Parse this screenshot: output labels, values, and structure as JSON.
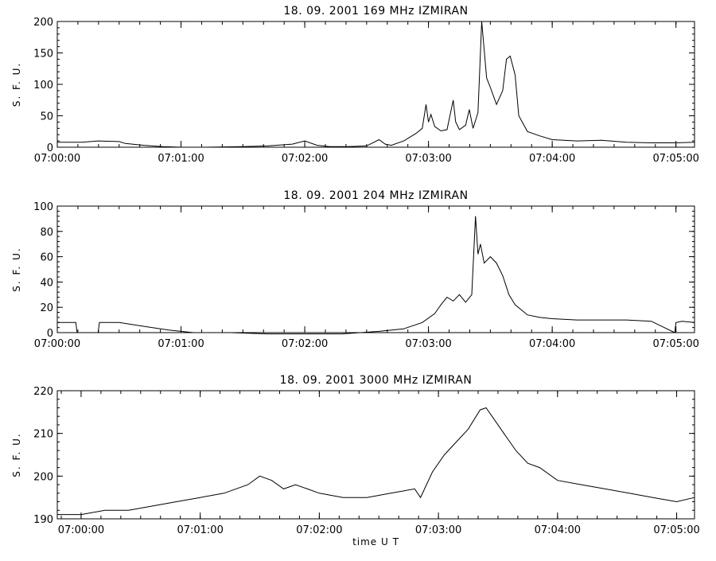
{
  "chart_data": [
    {
      "type": "line",
      "title": "18.  09.  2001    169  MHz    IZMIRAN",
      "ylabel": "S. F. U.",
      "xlabel": "",
      "ylim": [
        0,
        200
      ],
      "yticks": [
        0,
        50,
        100,
        150,
        200
      ],
      "xlim_min": [
        0,
        5.15
      ],
      "xticks": [
        0,
        1,
        2,
        3,
        4,
        5
      ],
      "xtick_labels": [
        "07:00:00",
        "07:01:00",
        "07:02:00",
        "07:03:00",
        "07:04:00",
        "07:05:00"
      ],
      "series": [
        {
          "x": [
            0,
            0.1,
            0.2,
            0.33,
            0.5,
            0.55,
            0.7,
            0.85,
            1.0,
            1.2,
            1.5,
            1.7,
            1.9,
            2.0,
            2.1,
            2.2,
            2.35,
            2.5,
            2.6,
            2.65,
            2.7,
            2.8,
            2.9,
            2.95,
            2.98,
            3.0,
            3.02,
            3.05,
            3.1,
            3.15,
            3.2,
            3.22,
            3.25,
            3.3,
            3.33,
            3.36,
            3.4,
            3.43,
            3.47,
            3.5,
            3.55,
            3.6,
            3.63,
            3.66,
            3.7,
            3.73,
            3.8,
            3.9,
            4.0,
            4.2,
            4.4,
            4.6,
            4.8,
            5.0,
            5.15
          ],
          "y": [
            8,
            8,
            8,
            10,
            9,
            6,
            3,
            1,
            0,
            0,
            1,
            2,
            5,
            10,
            3,
            1,
            1,
            2,
            12,
            5,
            3,
            10,
            22,
            30,
            68,
            40,
            52,
            33,
            26,
            28,
            75,
            40,
            28,
            35,
            60,
            30,
            55,
            200,
            110,
            95,
            68,
            90,
            140,
            145,
            115,
            50,
            25,
            18,
            12,
            10,
            11,
            8,
            7,
            7,
            8
          ]
        }
      ]
    },
    {
      "type": "line",
      "title": "18.  09.  2001    204  MHz    IZMIRAN",
      "ylabel": "S. F. U.",
      "xlabel": "",
      "ylim": [
        0,
        100
      ],
      "yticks": [
        0,
        20,
        40,
        60,
        80,
        100
      ],
      "xlim_min": [
        0,
        5.15
      ],
      "xticks": [
        0,
        1,
        2,
        3,
        4,
        5
      ],
      "xtick_labels": [
        "07:00:00",
        "07:01:00",
        "07:02:00",
        "07:03:00",
        "07:04:00",
        "07:05:00"
      ],
      "series": [
        {
          "x": [
            0,
            0.15,
            0.16,
            0.33,
            0.34,
            0.5,
            0.7,
            0.9,
            1.1,
            1.4,
            1.7,
            2.0,
            2.3,
            2.6,
            2.8,
            2.95,
            3.05,
            3.1,
            3.15,
            3.2,
            3.25,
            3.3,
            3.35,
            3.38,
            3.4,
            3.42,
            3.45,
            3.5,
            3.55,
            3.6,
            3.65,
            3.7,
            3.8,
            3.9,
            4.0,
            4.2,
            4.4,
            4.6,
            4.8,
            4.99,
            5.0,
            5.05,
            5.15
          ],
          "y": [
            8,
            8,
            0,
            0,
            8,
            8,
            5,
            2,
            0,
            0,
            -1,
            -1,
            -1,
            1,
            3,
            8,
            15,
            22,
            28,
            25,
            30,
            24,
            30,
            92,
            62,
            70,
            55,
            60,
            55,
            45,
            30,
            22,
            14,
            12,
            11,
            10,
            10,
            10,
            9,
            0,
            8,
            9,
            8
          ]
        }
      ]
    },
    {
      "type": "line",
      "title": "18.  09.  2001    3000  MHz    IZMIRAN",
      "ylabel": "S. F. U.",
      "xlabel": "time   U T",
      "ylim": [
        190,
        220
      ],
      "yticks": [
        190,
        200,
        210,
        220
      ],
      "xlim_min": [
        -0.2,
        5.15
      ],
      "xticks": [
        0,
        1,
        2,
        3,
        4,
        5
      ],
      "xtick_labels": [
        "07:00:00",
        "07:01:00",
        "07:02:00",
        "07:03:00",
        "07:04:00",
        "07:05:00"
      ],
      "series": [
        {
          "x": [
            -0.2,
            0.0,
            0.2,
            0.4,
            0.6,
            0.8,
            1.0,
            1.2,
            1.4,
            1.5,
            1.6,
            1.7,
            1.8,
            1.9,
            2.0,
            2.2,
            2.4,
            2.6,
            2.8,
            2.85,
            2.95,
            3.05,
            3.15,
            3.25,
            3.35,
            3.4,
            3.45,
            3.55,
            3.65,
            3.75,
            3.85,
            4.0,
            4.2,
            4.4,
            4.6,
            4.8,
            5.0,
            5.15
          ],
          "y": [
            191,
            191,
            192,
            192,
            193,
            194,
            195,
            196,
            198,
            200,
            199,
            197,
            198,
            197,
            196,
            195,
            195,
            196,
            197,
            195,
            201,
            205,
            208,
            211,
            215.5,
            216,
            214,
            210,
            206,
            203,
            202,
            199,
            198,
            197,
            196,
            195,
            194,
            195
          ]
        }
      ]
    }
  ]
}
